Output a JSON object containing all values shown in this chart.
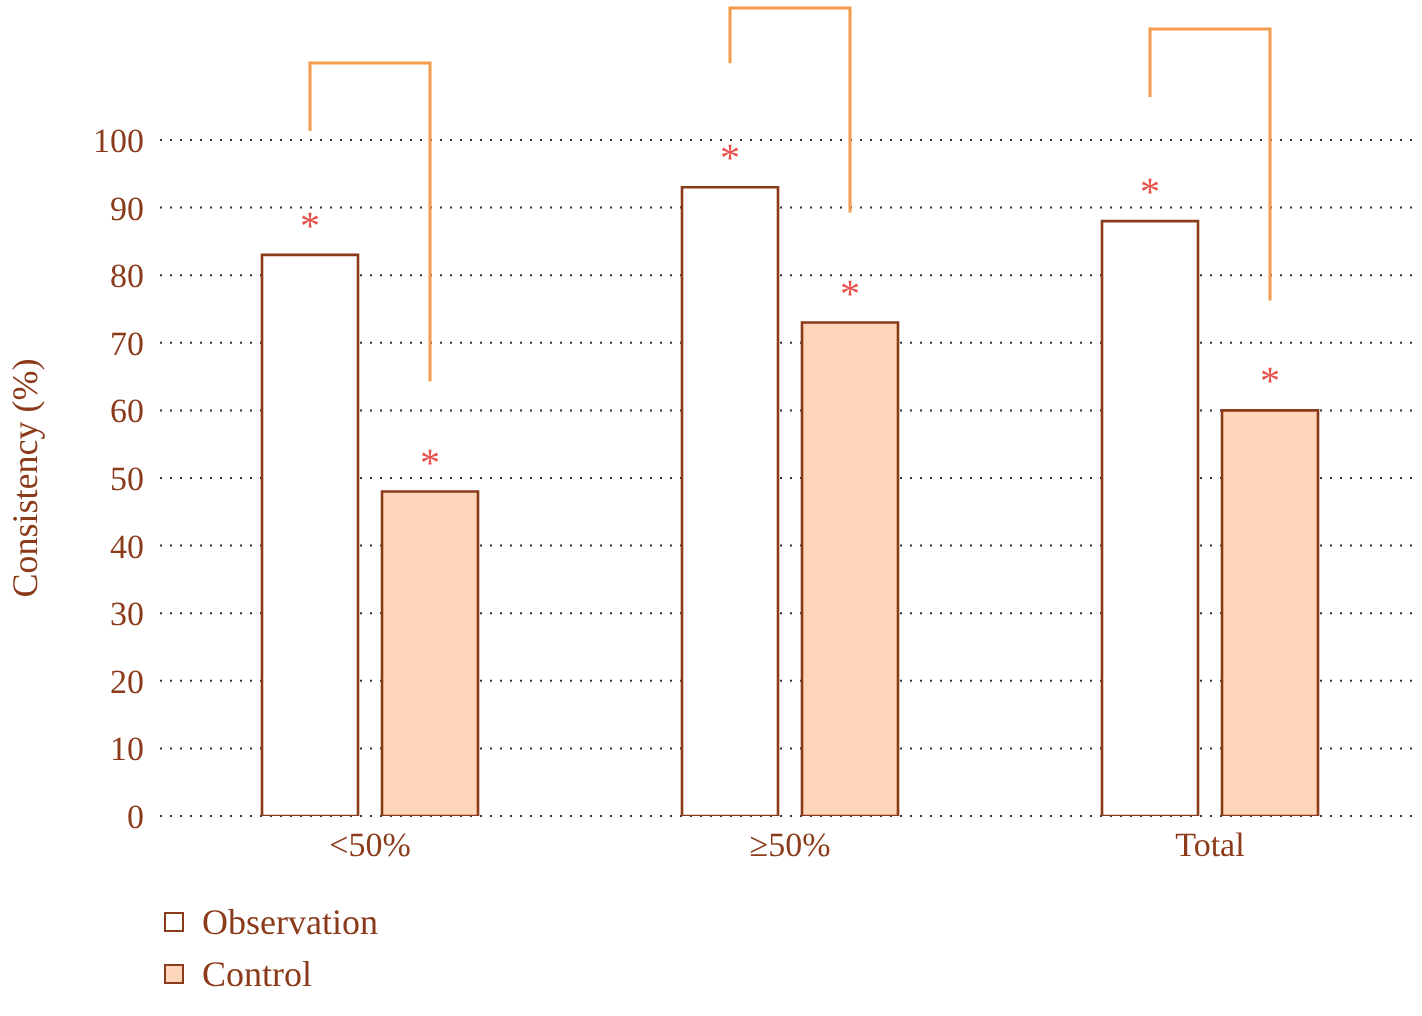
{
  "chart_data": {
    "type": "bar",
    "ylabel": "Consistency (%)",
    "categories": [
      "<50%",
      "≥50%",
      "Total"
    ],
    "series": [
      {
        "name": "Observation",
        "color": "#ffffff",
        "values": [
          83,
          93,
          88
        ]
      },
      {
        "name": "Control",
        "color": "#fdd5b8",
        "values": [
          48,
          73,
          60
        ]
      }
    ],
    "ylim": [
      0,
      100
    ],
    "yticks": [
      0,
      10,
      20,
      30,
      40,
      50,
      60,
      70,
      80,
      90,
      100
    ],
    "grid": "y",
    "legend": "bottom left",
    "annotations": [
      "*",
      "*",
      "*",
      "*",
      "*",
      "*"
    ]
  }
}
